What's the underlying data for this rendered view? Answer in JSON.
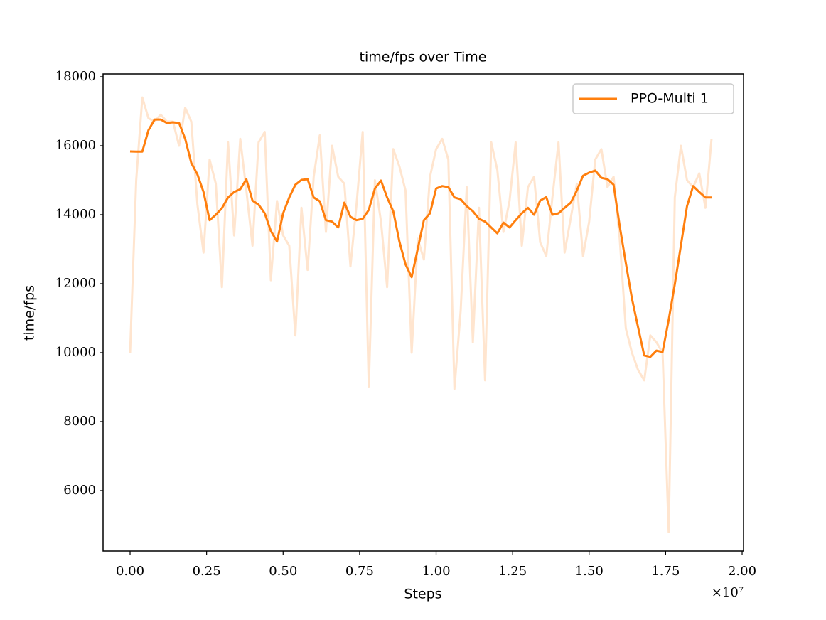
{
  "chart_data": {
    "type": "line",
    "title": "time/fps over Time",
    "xlabel": "Steps",
    "ylabel": "time/fps",
    "x_offset_label": "×10⁷",
    "x": [
      0,
      200000,
      400000,
      600000,
      800000,
      1000000,
      1200000,
      1400000,
      1600000,
      1800000,
      2000000,
      2200000,
      2400000,
      2600000,
      2800000,
      3000000,
      3200000,
      3400000,
      3600000,
      3800000,
      4000000,
      4200000,
      4400000,
      4600000,
      4800000,
      5000000,
      5200000,
      5400000,
      5600000,
      5800000,
      6000000,
      6200000,
      6400000,
      6600000,
      6800000,
      7000000,
      7200000,
      7400000,
      7600000,
      7800000,
      8000000,
      8200000,
      8400000,
      8600000,
      8800000,
      9000000,
      9200000,
      9400000,
      9600000,
      9800000,
      10000000,
      10200000,
      10400000,
      10600000,
      10800000,
      11000000,
      11200000,
      11400000,
      11600000,
      11800000,
      12000000,
      12200000,
      12400000,
      12600000,
      12800000,
      13000000,
      13200000,
      13400000,
      13600000,
      13800000,
      14000000,
      14200000,
      14400000,
      14600000,
      14800000,
      15000000,
      15200000,
      15400000,
      15600000,
      15800000,
      16000000,
      16200000,
      16400000,
      16600000,
      16800000,
      17000000,
      17200000,
      17400000,
      17600000,
      17800000,
      18000000,
      18200000,
      18400000,
      18600000,
      18800000,
      19000000
    ],
    "series": [
      {
        "name": "PPO-Multi 1",
        "color": "#ff7f0e",
        "values": [
          15835,
          15830,
          15830,
          16450,
          16760,
          16760,
          16660,
          16680,
          16660,
          16200,
          15500,
          15170,
          14660,
          13840,
          14000,
          14190,
          14500,
          14660,
          14740,
          15030,
          14410,
          14290,
          14040,
          13530,
          13220,
          14040,
          14500,
          14870,
          15010,
          15030,
          14500,
          14390,
          13840,
          13800,
          13630,
          14350,
          13940,
          13840,
          13880,
          14140,
          14760,
          14990,
          14500,
          14100,
          13220,
          12560,
          12190,
          13010,
          13840,
          14040,
          14760,
          14830,
          14800,
          14500,
          14450,
          14250,
          14100,
          13880,
          13800,
          13630,
          13460,
          13770,
          13630,
          13840,
          14040,
          14200,
          14000,
          14410,
          14510,
          14000,
          14040,
          14200,
          14350,
          14700,
          15130,
          15220,
          15280,
          15070,
          15030,
          14870,
          13670,
          12600,
          11570,
          10740,
          9920,
          9880,
          10060,
          10020,
          10950,
          11980,
          13110,
          14250,
          14830,
          14660,
          14500,
          14500
        ],
        "raw_values": [
          10000,
          15000,
          17400,
          16800,
          16700,
          16900,
          16700,
          16700,
          16000,
          17100,
          16700,
          14300,
          12900,
          15600,
          14900,
          11900,
          16100,
          13400,
          16200,
          14700,
          13100,
          16100,
          16400,
          12100,
          14400,
          13400,
          13100,
          10500,
          14200,
          12400,
          15100,
          16300,
          13500,
          16000,
          15100,
          14900,
          12500,
          14300,
          16400,
          9000,
          15000,
          13800,
          11900,
          15900,
          15400,
          14700,
          10000,
          13300,
          12700,
          15100,
          15900,
          16200,
          15600,
          8950,
          11200,
          14800,
          10300,
          14200,
          9200,
          16100,
          15300,
          13500,
          14400,
          16100,
          13100,
          14800,
          15100,
          13200,
          12800,
          14500,
          16100,
          12900,
          13900,
          14900,
          12800,
          13800,
          15600,
          15900,
          14800,
          15100,
          13300,
          10700,
          10000,
          9500,
          9200,
          10500,
          10300,
          10000,
          4800,
          14500,
          16000,
          15000,
          14800,
          15200,
          14200,
          16200
        ]
      }
    ],
    "xlim": [
      -883000,
      20046000
    ],
    "xticks": [
      {
        "value": 0,
        "label": "0.00"
      },
      {
        "value": 2500000,
        "label": "0.25"
      },
      {
        "value": 5000000,
        "label": "0.50"
      },
      {
        "value": 7500000,
        "label": "0.75"
      },
      {
        "value": 10000000,
        "label": "1.00"
      },
      {
        "value": 12500000,
        "label": "1.25"
      },
      {
        "value": 15000000,
        "label": "1.50"
      },
      {
        "value": 17500000,
        "label": "1.75"
      },
      {
        "value": 20000000,
        "label": "2.00"
      }
    ],
    "ylim": [
      4247,
      18082
    ],
    "yticks": [
      6000,
      8000,
      10000,
      12000,
      14000,
      16000,
      18000
    ],
    "legend": "upper right",
    "grid": false
  }
}
